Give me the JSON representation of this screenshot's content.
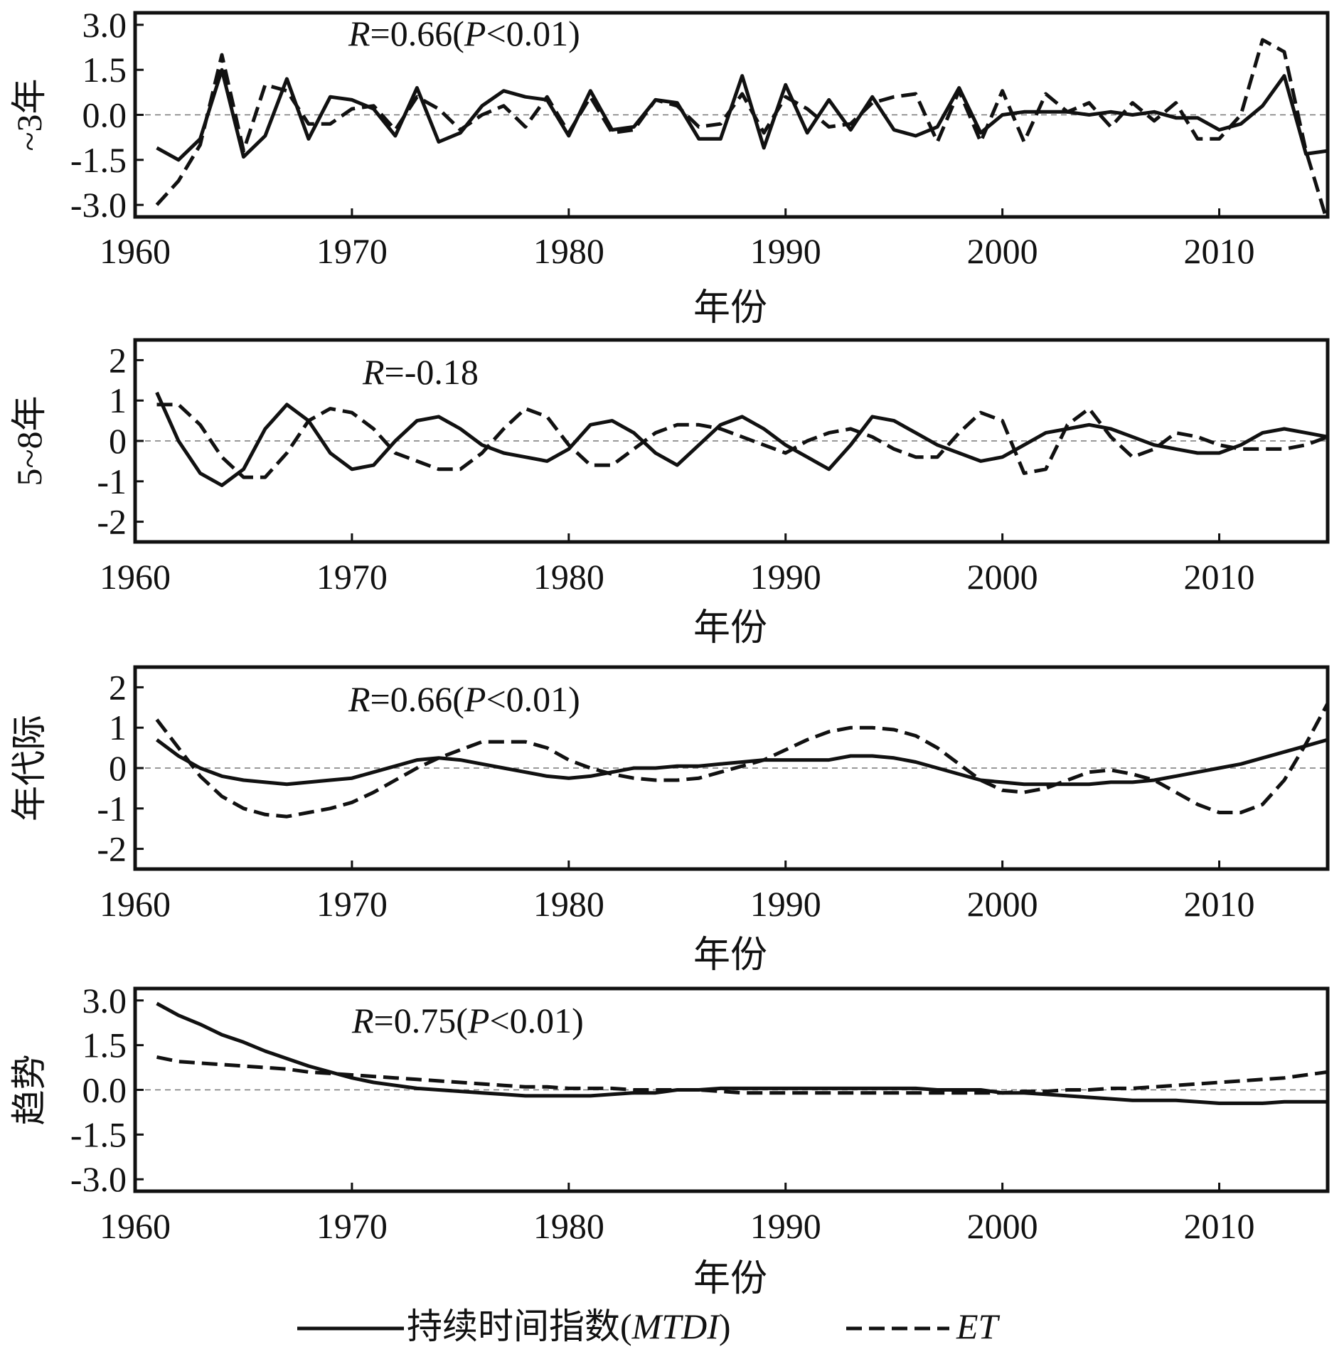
{
  "chart_data": [
    {
      "type": "line",
      "ylabel": "~3年",
      "xlabel": "年份",
      "annotation": "R=0.66(P<0.01)",
      "xlim": [
        1960,
        2015
      ],
      "ylim": [
        -3.4,
        3.4
      ],
      "yticks": [
        "3.0",
        "1.5",
        "0.0",
        "-1.5",
        "-3.0"
      ],
      "ytick_values": [
        3.0,
        1.5,
        0.0,
        -1.5,
        -3.0
      ],
      "xticks": [
        1960,
        1970,
        1980,
        1990,
        2000,
        2010
      ],
      "x": [
        1961,
        1962,
        1963,
        1964,
        1965,
        1966,
        1967,
        1968,
        1969,
        1970,
        1971,
        1972,
        1973,
        1974,
        1975,
        1976,
        1977,
        1978,
        1979,
        1980,
        1981,
        1982,
        1983,
        1984,
        1985,
        1986,
        1987,
        1988,
        1989,
        1990,
        1991,
        1992,
        1993,
        1994,
        1995,
        1996,
        1997,
        1998,
        1999,
        2000,
        2001,
        2002,
        2003,
        2004,
        2005,
        2006,
        2007,
        2008,
        2009,
        2010,
        2011,
        2012,
        2013,
        2014,
        2015
      ],
      "series": [
        {
          "name": "持续时间指数(MTDI)",
          "style": "solid",
          "values": [
            -1.1,
            -1.5,
            -0.8,
            1.5,
            -1.4,
            -0.7,
            1.2,
            -0.8,
            0.6,
            0.5,
            0.2,
            -0.7,
            0.9,
            -0.9,
            -0.6,
            0.3,
            0.8,
            0.6,
            0.5,
            -0.7,
            0.8,
            -0.5,
            -0.4,
            0.5,
            0.4,
            -0.8,
            -0.8,
            1.3,
            -1.1,
            1.0,
            -0.6,
            0.5,
            -0.5,
            0.6,
            -0.5,
            -0.7,
            -0.4,
            0.9,
            -0.6,
            0.0,
            0.1,
            0.1,
            0.1,
            0.0,
            0.1,
            0.0,
            0.1,
            -0.1,
            -0.1,
            -0.5,
            -0.3,
            0.3,
            1.3,
            -1.3,
            -1.2
          ]
        },
        {
          "name": "ET",
          "style": "dashed",
          "values": [
            -3.0,
            -2.2,
            -1.0,
            2.0,
            -1.2,
            1.0,
            0.8,
            -0.3,
            -0.3,
            0.2,
            0.3,
            -0.5,
            0.6,
            0.2,
            -0.5,
            0.0,
            0.3,
            -0.4,
            0.6,
            -0.6,
            0.6,
            -0.6,
            -0.5,
            0.5,
            0.3,
            -0.4,
            -0.3,
            0.7,
            -0.6,
            0.6,
            0.2,
            -0.4,
            -0.3,
            0.4,
            0.6,
            0.7,
            -0.9,
            0.8,
            -0.9,
            0.8,
            -0.9,
            0.7,
            0.1,
            0.4,
            -0.4,
            0.4,
            -0.2,
            0.4,
            -0.8,
            -0.8,
            0.0,
            2.5,
            2.1,
            -1.2,
            -3.6
          ]
        }
      ]
    },
    {
      "type": "line",
      "ylabel": "5~8年",
      "xlabel": "年份",
      "annotation": "R=-0.18",
      "xlim": [
        1960,
        2015
      ],
      "ylim": [
        -2.5,
        2.5
      ],
      "yticks": [
        "2",
        "1",
        "0",
        "-1",
        "-2"
      ],
      "ytick_values": [
        2,
        1,
        0,
        -1,
        -2
      ],
      "xticks": [
        1960,
        1970,
        1980,
        1990,
        2000,
        2010
      ],
      "x": [
        1961,
        1962,
        1963,
        1964,
        1965,
        1966,
        1967,
        1968,
        1969,
        1970,
        1971,
        1972,
        1973,
        1974,
        1975,
        1976,
        1977,
        1978,
        1979,
        1980,
        1981,
        1982,
        1983,
        1984,
        1985,
        1986,
        1987,
        1988,
        1989,
        1990,
        1991,
        1992,
        1993,
        1994,
        1995,
        1996,
        1997,
        1998,
        1999,
        2000,
        2001,
        2002,
        2003,
        2004,
        2005,
        2006,
        2007,
        2008,
        2009,
        2010,
        2011,
        2012,
        2013,
        2014,
        2015
      ],
      "series": [
        {
          "name": "持续时间指数(MTDI)",
          "style": "solid",
          "values": [
            1.2,
            0.0,
            -0.8,
            -1.1,
            -0.7,
            0.3,
            0.9,
            0.5,
            -0.3,
            -0.7,
            -0.6,
            0.0,
            0.5,
            0.6,
            0.3,
            -0.1,
            -0.3,
            -0.4,
            -0.5,
            -0.2,
            0.4,
            0.5,
            0.2,
            -0.3,
            -0.6,
            -0.1,
            0.4,
            0.6,
            0.3,
            -0.1,
            -0.4,
            -0.7,
            -0.1,
            0.6,
            0.5,
            0.2,
            -0.1,
            -0.3,
            -0.5,
            -0.4,
            -0.1,
            0.2,
            0.3,
            0.4,
            0.3,
            0.1,
            -0.1,
            -0.2,
            -0.3,
            -0.3,
            -0.1,
            0.2,
            0.3,
            0.2,
            0.1
          ]
        },
        {
          "name": "ET",
          "style": "dashed",
          "values": [
            0.9,
            0.9,
            0.4,
            -0.4,
            -0.9,
            -0.9,
            -0.3,
            0.5,
            0.8,
            0.7,
            0.3,
            -0.3,
            -0.5,
            -0.7,
            -0.7,
            -0.3,
            0.3,
            0.8,
            0.6,
            -0.1,
            -0.6,
            -0.6,
            -0.2,
            0.2,
            0.4,
            0.4,
            0.3,
            0.1,
            -0.1,
            -0.3,
            0.0,
            0.2,
            0.3,
            0.1,
            -0.2,
            -0.4,
            -0.4,
            0.2,
            0.7,
            0.5,
            -0.8,
            -0.7,
            0.4,
            0.8,
            0.1,
            -0.4,
            -0.2,
            0.2,
            0.1,
            -0.1,
            -0.2,
            -0.2,
            -0.2,
            -0.1,
            0.1
          ]
        }
      ]
    },
    {
      "type": "line",
      "ylabel": "年代际",
      "xlabel": "年份",
      "annotation": "R=0.66(P<0.01)",
      "xlim": [
        1960,
        2015
      ],
      "ylim": [
        -2.5,
        2.5
      ],
      "yticks": [
        "2",
        "1",
        "0",
        "-1",
        "-2"
      ],
      "ytick_values": [
        2,
        1,
        0,
        -1,
        -2
      ],
      "xticks": [
        1960,
        1970,
        1980,
        1990,
        2000,
        2010
      ],
      "x": [
        1961,
        1962,
        1963,
        1964,
        1965,
        1966,
        1967,
        1968,
        1969,
        1970,
        1971,
        1972,
        1973,
        1974,
        1975,
        1976,
        1977,
        1978,
        1979,
        1980,
        1981,
        1982,
        1983,
        1984,
        1985,
        1986,
        1987,
        1988,
        1989,
        1990,
        1991,
        1992,
        1993,
        1994,
        1995,
        1996,
        1997,
        1998,
        1999,
        2000,
        2001,
        2002,
        2003,
        2004,
        2005,
        2006,
        2007,
        2008,
        2009,
        2010,
        2011,
        2012,
        2013,
        2014,
        2015
      ],
      "series": [
        {
          "name": "持续时间指数(MTDI)",
          "style": "solid",
          "values": [
            0.7,
            0.3,
            0.0,
            -0.2,
            -0.3,
            -0.35,
            -0.4,
            -0.35,
            -0.3,
            -0.25,
            -0.1,
            0.05,
            0.2,
            0.25,
            0.2,
            0.1,
            0.0,
            -0.1,
            -0.2,
            -0.25,
            -0.2,
            -0.1,
            0.0,
            0.0,
            0.05,
            0.05,
            0.1,
            0.15,
            0.2,
            0.2,
            0.2,
            0.2,
            0.3,
            0.3,
            0.25,
            0.15,
            0.0,
            -0.15,
            -0.3,
            -0.35,
            -0.4,
            -0.4,
            -0.4,
            -0.4,
            -0.35,
            -0.35,
            -0.3,
            -0.2,
            -0.1,
            0.0,
            0.1,
            0.25,
            0.4,
            0.55,
            0.7
          ]
        },
        {
          "name": "ET",
          "style": "dashed",
          "values": [
            1.2,
            0.5,
            -0.2,
            -0.7,
            -1.0,
            -1.15,
            -1.2,
            -1.1,
            -1.0,
            -0.85,
            -0.6,
            -0.3,
            0.0,
            0.25,
            0.45,
            0.65,
            0.65,
            0.65,
            0.5,
            0.2,
            0.0,
            -0.15,
            -0.25,
            -0.3,
            -0.3,
            -0.25,
            -0.1,
            0.05,
            0.2,
            0.45,
            0.7,
            0.9,
            1.0,
            1.0,
            0.95,
            0.8,
            0.5,
            0.1,
            -0.3,
            -0.55,
            -0.6,
            -0.5,
            -0.3,
            -0.1,
            -0.05,
            -0.15,
            -0.3,
            -0.6,
            -0.9,
            -1.1,
            -1.1,
            -0.9,
            -0.3,
            0.6,
            1.6
          ]
        }
      ]
    },
    {
      "type": "line",
      "ylabel": "趋势",
      "xlabel": "年份",
      "annotation": "R=0.75(P<0.01)",
      "xlim": [
        1960,
        2015
      ],
      "ylim": [
        -3.4,
        3.4
      ],
      "yticks": [
        "3.0",
        "1.5",
        "0.0",
        "-1.5",
        "-3.0"
      ],
      "ytick_values": [
        3.0,
        1.5,
        0.0,
        -1.5,
        -3.0
      ],
      "xticks": [
        1960,
        1970,
        1980,
        1990,
        2000,
        2010
      ],
      "x": [
        1961,
        1962,
        1963,
        1964,
        1965,
        1966,
        1967,
        1968,
        1969,
        1970,
        1971,
        1972,
        1973,
        1974,
        1975,
        1976,
        1977,
        1978,
        1979,
        1980,
        1981,
        1982,
        1983,
        1984,
        1985,
        1986,
        1987,
        1988,
        1989,
        1990,
        1991,
        1992,
        1993,
        1994,
        1995,
        1996,
        1997,
        1998,
        1999,
        2000,
        2001,
        2002,
        2003,
        2004,
        2005,
        2006,
        2007,
        2008,
        2009,
        2010,
        2011,
        2012,
        2013,
        2014,
        2015
      ],
      "series": [
        {
          "name": "持续时间指数(MTDI)",
          "style": "solid",
          "values": [
            2.9,
            2.5,
            2.2,
            1.85,
            1.6,
            1.3,
            1.05,
            0.8,
            0.6,
            0.4,
            0.25,
            0.15,
            0.05,
            0.0,
            -0.05,
            -0.1,
            -0.15,
            -0.2,
            -0.2,
            -0.2,
            -0.2,
            -0.15,
            -0.1,
            -0.1,
            0.0,
            0.0,
            0.05,
            0.05,
            0.05,
            0.05,
            0.05,
            0.05,
            0.05,
            0.05,
            0.05,
            0.05,
            0.0,
            0.0,
            0.0,
            -0.1,
            -0.1,
            -0.15,
            -0.2,
            -0.25,
            -0.3,
            -0.35,
            -0.35,
            -0.35,
            -0.4,
            -0.45,
            -0.45,
            -0.45,
            -0.4,
            -0.4,
            -0.4
          ]
        },
        {
          "name": "ET",
          "style": "dashed",
          "values": [
            1.1,
            0.95,
            0.9,
            0.85,
            0.8,
            0.75,
            0.7,
            0.6,
            0.55,
            0.5,
            0.45,
            0.4,
            0.35,
            0.3,
            0.25,
            0.2,
            0.15,
            0.1,
            0.1,
            0.05,
            0.05,
            0.05,
            0.0,
            0.0,
            0.0,
            0.0,
            -0.05,
            -0.1,
            -0.1,
            -0.1,
            -0.1,
            -0.1,
            -0.1,
            -0.1,
            -0.1,
            -0.1,
            -0.1,
            -0.1,
            -0.1,
            -0.1,
            -0.05,
            -0.05,
            0.0,
            0.0,
            0.05,
            0.05,
            0.1,
            0.15,
            0.2,
            0.25,
            0.3,
            0.35,
            0.4,
            0.5,
            0.6
          ]
        }
      ]
    }
  ],
  "legend": {
    "items": [
      {
        "label": "持续时间指数(MTDI)",
        "style": "solid"
      },
      {
        "label": "ET",
        "style": "dashed"
      }
    ],
    "placement": "bottom-center"
  }
}
